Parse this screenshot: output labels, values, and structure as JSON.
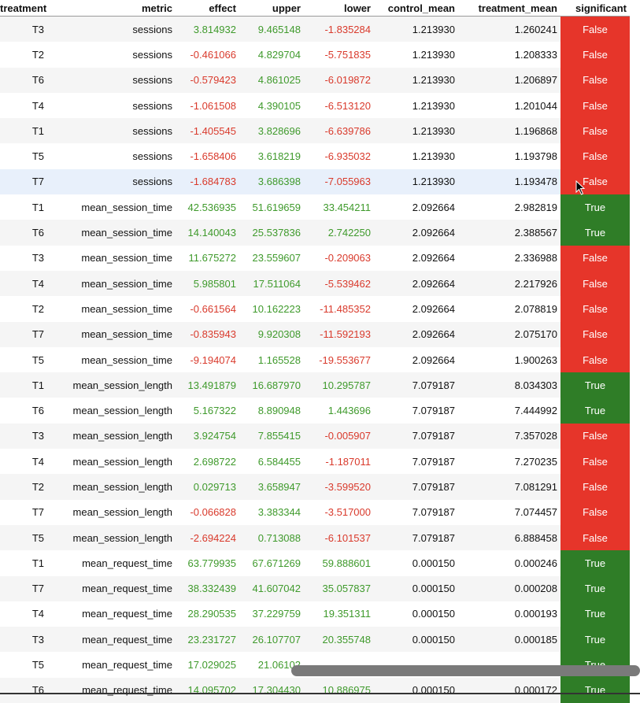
{
  "table": {
    "columns": [
      "treatment",
      "metric",
      "effect",
      "upper",
      "lower",
      "control_mean",
      "treatment_mean",
      "significant"
    ],
    "rows": [
      [
        "T3",
        "sessions",
        "3.814932",
        "9.465148",
        "-1.835284",
        "1.213930",
        "1.260241",
        "False"
      ],
      [
        "T2",
        "sessions",
        "-0.461066",
        "4.829704",
        "-5.751835",
        "1.213930",
        "1.208333",
        "False"
      ],
      [
        "T6",
        "sessions",
        "-0.579423",
        "4.861025",
        "-6.019872",
        "1.213930",
        "1.206897",
        "False"
      ],
      [
        "T4",
        "sessions",
        "-1.061508",
        "4.390105",
        "-6.513120",
        "1.213930",
        "1.201044",
        "False"
      ],
      [
        "T1",
        "sessions",
        "-1.405545",
        "3.828696",
        "-6.639786",
        "1.213930",
        "1.196868",
        "False"
      ],
      [
        "T5",
        "sessions",
        "-1.658406",
        "3.618219",
        "-6.935032",
        "1.213930",
        "1.193798",
        "False"
      ],
      [
        "T7",
        "sessions",
        "-1.684783",
        "3.686398",
        "-7.055963",
        "1.213930",
        "1.193478",
        "False"
      ],
      [
        "T1",
        "mean_session_time",
        "42.536935",
        "51.619659",
        "33.454211",
        "2.092664",
        "2.982819",
        "True"
      ],
      [
        "T6",
        "mean_session_time",
        "14.140043",
        "25.537836",
        "2.742250",
        "2.092664",
        "2.388567",
        "True"
      ],
      [
        "T3",
        "mean_session_time",
        "11.675272",
        "23.559607",
        "-0.209063",
        "2.092664",
        "2.336988",
        "False"
      ],
      [
        "T4",
        "mean_session_time",
        "5.985801",
        "17.511064",
        "-5.539462",
        "2.092664",
        "2.217926",
        "False"
      ],
      [
        "T2",
        "mean_session_time",
        "-0.661564",
        "10.162223",
        "-11.485352",
        "2.092664",
        "2.078819",
        "False"
      ],
      [
        "T7",
        "mean_session_time",
        "-0.835943",
        "9.920308",
        "-11.592193",
        "2.092664",
        "2.075170",
        "False"
      ],
      [
        "T5",
        "mean_session_time",
        "-9.194074",
        "1.165528",
        "-19.553677",
        "2.092664",
        "1.900263",
        "False"
      ],
      [
        "T1",
        "mean_session_length",
        "13.491879",
        "16.687970",
        "10.295787",
        "7.079187",
        "8.034303",
        "True"
      ],
      [
        "T6",
        "mean_session_length",
        "5.167322",
        "8.890948",
        "1.443696",
        "7.079187",
        "7.444992",
        "True"
      ],
      [
        "T3",
        "mean_session_length",
        "3.924754",
        "7.855415",
        "-0.005907",
        "7.079187",
        "7.357028",
        "False"
      ],
      [
        "T4",
        "mean_session_length",
        "2.698722",
        "6.584455",
        "-1.187011",
        "7.079187",
        "7.270235",
        "False"
      ],
      [
        "T2",
        "mean_session_length",
        "0.029713",
        "3.658947",
        "-3.599520",
        "7.079187",
        "7.081291",
        "False"
      ],
      [
        "T7",
        "mean_session_length",
        "-0.066828",
        "3.383344",
        "-3.517000",
        "7.079187",
        "7.074457",
        "False"
      ],
      [
        "T5",
        "mean_session_length",
        "-2.694224",
        "0.713088",
        "-6.101537",
        "7.079187",
        "6.888458",
        "False"
      ],
      [
        "T1",
        "mean_request_time",
        "63.779935",
        "67.671269",
        "59.888601",
        "0.000150",
        "0.000246",
        "True"
      ],
      [
        "T7",
        "mean_request_time",
        "38.332439",
        "41.607042",
        "35.057837",
        "0.000150",
        "0.000208",
        "True"
      ],
      [
        "T4",
        "mean_request_time",
        "28.290535",
        "37.229759",
        "19.351311",
        "0.000150",
        "0.000193",
        "True"
      ],
      [
        "T3",
        "mean_request_time",
        "23.231727",
        "26.107707",
        "20.355748",
        "0.000150",
        "0.000185",
        "True"
      ],
      [
        "T5",
        "mean_request_time",
        "17.029025",
        "21.06102",
        "",
        "",
        "",
        "True"
      ],
      [
        "T6",
        "mean_request_time",
        "14.095702",
        "17.304430",
        "10.886975",
        "0.000150",
        "0.000172",
        "True"
      ]
    ],
    "highlighted_row": 6
  },
  "colors": {
    "positive_text": "#3f9a2c",
    "negative_text": "#d93a2c",
    "significant_true": "#2f7d27",
    "significant_false": "#e6352a",
    "row_highlight": "#e8f0fb"
  },
  "icons": {
    "cursor": "mouse-pointer-icon"
  }
}
